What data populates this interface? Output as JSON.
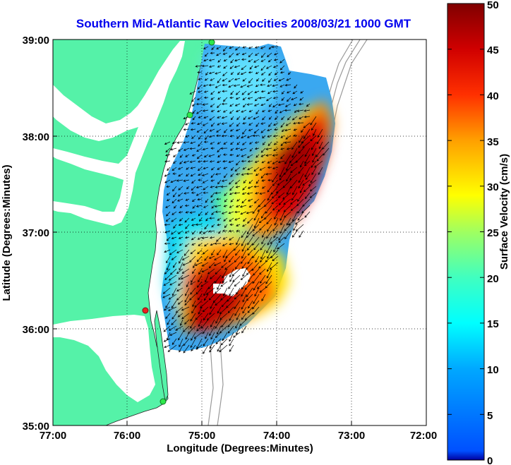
{
  "title": "Southern Mid-Atlantic Raw Velocities 2008/03/21 1000 GMT",
  "map": {
    "xlabel": "Longitude (Degrees:Minutes)",
    "ylabel": "Latitude (Degrees:Minutes)",
    "lon_ticks": [
      "77:00",
      "76:00",
      "75:00",
      "74:00",
      "73:00",
      "72:00"
    ],
    "lat_ticks": [
      "39:00",
      "38:00",
      "37:00",
      "36:00",
      "35:00"
    ],
    "lon_range": [
      -77,
      -72
    ],
    "lat_range": [
      35,
      39
    ],
    "grid": "dotted",
    "land_color": "#55f2a8",
    "station_colors": {
      "active": "#2ee84b",
      "inactive": "#ee2020"
    }
  },
  "colorbar": {
    "label": "Surface Velocity (cm/s)",
    "ticks": [
      "0",
      "5",
      "10",
      "15",
      "20",
      "25",
      "30",
      "35",
      "40",
      "45",
      "50"
    ],
    "range": [
      0,
      50
    ],
    "colormap": "jet"
  }
}
